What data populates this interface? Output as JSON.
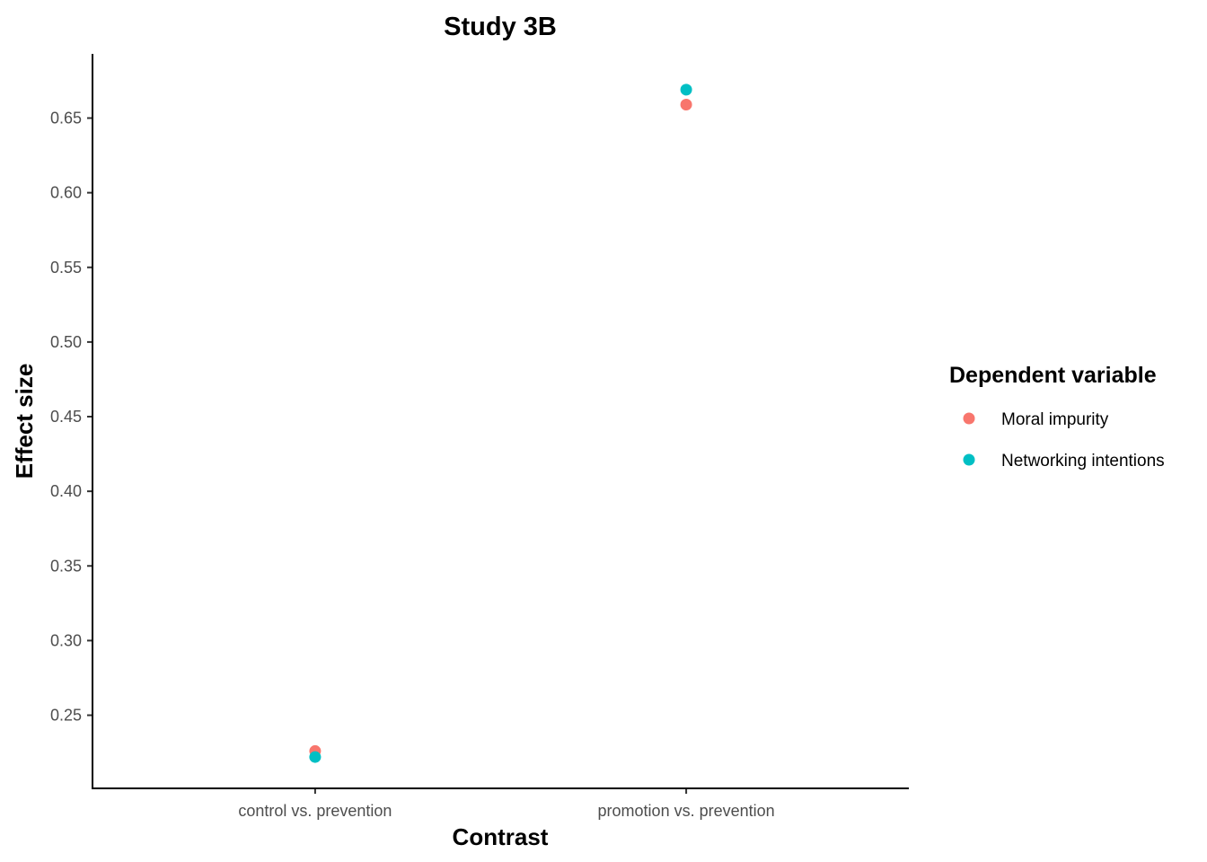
{
  "chart_data": {
    "type": "scatter",
    "title": "Study 3B",
    "xlabel": "Contrast",
    "ylabel": "Effect size",
    "categories": [
      "control vs. prevention",
      "promotion vs. prevention"
    ],
    "ylim": [
      0.201,
      0.693
    ],
    "yticks": [
      0.25,
      0.3,
      0.35,
      0.4,
      0.45,
      0.5,
      0.55,
      0.6,
      0.65
    ],
    "ytick_labels": [
      "0.25",
      "0.30",
      "0.35",
      "0.40",
      "0.45",
      "0.50",
      "0.55",
      "0.60",
      "0.65"
    ],
    "grid": false,
    "legend": {
      "title": "Dependent variable",
      "placement": "right"
    },
    "series": [
      {
        "name": "Moral impurity",
        "color": "#F8766D",
        "values": [
          0.226,
          0.659
        ]
      },
      {
        "name": "Networking intentions",
        "color": "#00BFC4",
        "values": [
          0.222,
          0.669
        ]
      }
    ]
  }
}
